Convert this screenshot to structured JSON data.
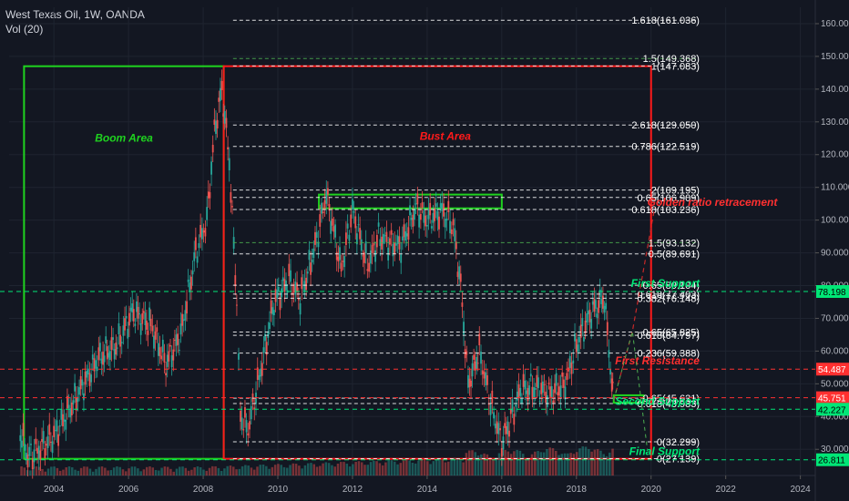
{
  "header": {
    "title": "West Texas Oil, 1W, OANDA",
    "indicator": "Vol (20)"
  },
  "chart_data": {
    "type": "line",
    "series": [
      {
        "name": "",
        "x": [
          2003.1,
          2003.3,
          2003.6,
          2004.0,
          2004.4,
          2004.8,
          2005.2,
          2005.7,
          2006.1,
          2006.6,
          2007.0,
          2007.4,
          2007.8,
          2008.1,
          2008.3,
          2008.5,
          2008.7,
          2008.9,
          2009.0,
          2009.2,
          2009.5,
          2009.9,
          2010.3,
          2010.6,
          2011.0,
          2011.3,
          2011.7,
          2012.0,
          2012.4,
          2012.7,
          2013.0,
          2013.3,
          2013.7,
          2014.0,
          2014.4,
          2014.7,
          2014.9,
          2015.1,
          2015.4,
          2015.7,
          2016.0,
          2016.2,
          2016.5,
          2016.9,
          2017.3,
          2017.7,
          2018.0,
          2018.4,
          2018.75,
          2018.95,
          2019.0
        ],
        "values": [
          35,
          28,
          30,
          34,
          42,
          50,
          58,
          62,
          72,
          68,
          56,
          65,
          90,
          100,
          127,
          140,
          118,
          75,
          40,
          36,
          52,
          75,
          82,
          76,
          92,
          108,
          85,
          103,
          86,
          95,
          93,
          92,
          104,
          100,
          103,
          98,
          80,
          50,
          60,
          44,
          32,
          38,
          48,
          49,
          47,
          50,
          62,
          72,
          76,
          50,
          45.8
        ]
      }
    ],
    "ylim": [
      22,
      165
    ],
    "xlim": [
      2002.8,
      2024.4
    ],
    "y_ticks": [
      "30.000",
      "40.000",
      "50.000",
      "60.000",
      "70.000",
      "80.000",
      "90.000",
      "100.000",
      "110.000",
      "120.000",
      "130.000",
      "140.000",
      "150.000",
      "160.000"
    ],
    "x_ticks": [
      "2004",
      "2006",
      "2008",
      "2010",
      "2012",
      "2014",
      "2016",
      "2018",
      "2020",
      "2022",
      "2024"
    ],
    "fib_levels": [
      {
        "label": "1.618(161.036)",
        "value": 161.036,
        "color": "#ffffff"
      },
      {
        "label": "1.5(149.368)",
        "value": 149.368,
        "color": "#4caf50"
      },
      {
        "label": "1(147.083)",
        "value": 147.083,
        "color": "#ffffff"
      },
      {
        "label": "2.618(129.050)",
        "value": 129.05,
        "color": "#ffffff"
      },
      {
        "label": "0.786(122.519)",
        "value": 122.519,
        "color": "#ffffff"
      },
      {
        "label": "2(109.195)",
        "value": 109.195,
        "color": "#ffffff"
      },
      {
        "label": "0.65(106.909)",
        "value": 106.909,
        "color": "#ffffff"
      },
      {
        "label": "0.618(103.236)",
        "value": 103.236,
        "color": "#ffffff"
      },
      {
        "label": "1.5(93.132)",
        "value": 93.132,
        "color": "#4caf50"
      },
      {
        "label": "0.5(89.691)",
        "value": 89.691,
        "color": "#ffffff"
      },
      {
        "label": "0.65(80.104)",
        "value": 80.104,
        "color": "#ffffff"
      },
      {
        "label": "0.618(77.403)",
        "value": 77.403,
        "color": "#ffffff"
      },
      {
        "label": "0.382(76.148)",
        "value": 76.148,
        "color": "#ffffff"
      },
      {
        "label": "0.65(65.825)",
        "value": 65.825,
        "color": "#ffffff"
      },
      {
        "label": "0.618(64.797)",
        "value": 64.797,
        "color": "#ffffff"
      },
      {
        "label": "0.236(59.388)",
        "value": 59.388,
        "color": "#ffffff"
      },
      {
        "label": "0.65(45.621)",
        "value": 45.621,
        "color": "#ffffff"
      },
      {
        "label": "0.618(43.983)",
        "value": 43.983,
        "color": "#ffffff"
      },
      {
        "label": "0(32.299)",
        "value": 32.299,
        "color": "#ffffff"
      },
      {
        "label": "0(27.139)",
        "value": 27.139,
        "color": "#ffffff"
      }
    ],
    "horizontal_lines": [
      {
        "value": 78.198,
        "color": "#00e676",
        "label": "First Support",
        "badge": "78.198"
      },
      {
        "value": 54.487,
        "color": "#ff3030",
        "label": "First Resistance",
        "badge": "54.487"
      },
      {
        "value": 45.751,
        "color": "#ff3030",
        "label": "",
        "badge": "45.751"
      },
      {
        "value": 42.227,
        "color": "#00e676",
        "label": "Second Support",
        "badge": "42.227"
      },
      {
        "value": 26.811,
        "color": "#00e676",
        "label": "Final Support",
        "badge": "26.811"
      }
    ],
    "annotations": {
      "boom": "Boom Area",
      "bust": "Bust Area",
      "golden": "Golden ratio retracement"
    },
    "colors": {
      "background": "#131722",
      "up": "#26a69a",
      "down": "#ef5350",
      "green_box": "#1fd31f",
      "red_box": "#ff1a1a"
    }
  }
}
